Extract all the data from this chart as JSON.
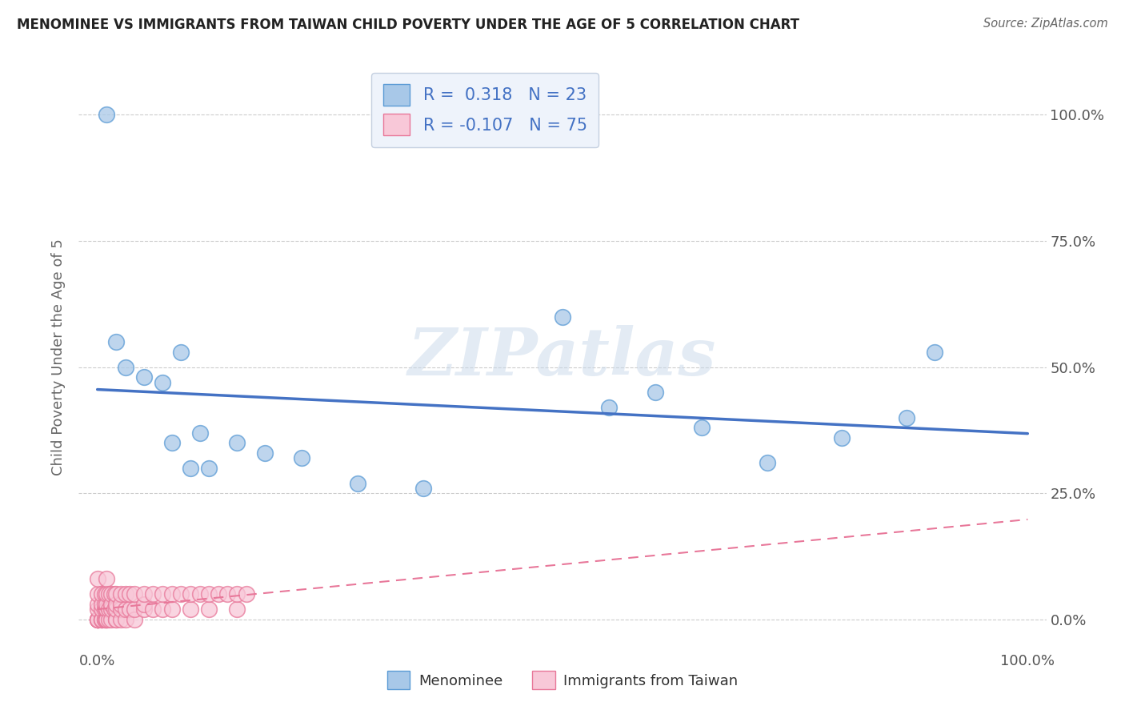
{
  "title": "MENOMINEE VS IMMIGRANTS FROM TAIWAN CHILD POVERTY UNDER THE AGE OF 5 CORRELATION CHART",
  "source": "Source: ZipAtlas.com",
  "ylabel": "Child Poverty Under the Age of 5",
  "watermark": "ZIPatlas",
  "menominee": {
    "color": "#a8c8e8",
    "edge_color": "#5b9bd5",
    "line_color": "#4472c4",
    "R": 0.318,
    "N": 23,
    "points_x": [
      0.01,
      0.02,
      0.03,
      0.05,
      0.07,
      0.08,
      0.09,
      0.1,
      0.11,
      0.12,
      0.15,
      0.18,
      0.22,
      0.28,
      0.35,
      0.5,
      0.55,
      0.6,
      0.65,
      0.72,
      0.8,
      0.87,
      0.9
    ],
    "points_y": [
      1.0,
      0.55,
      0.5,
      0.48,
      0.47,
      0.35,
      0.53,
      0.3,
      0.37,
      0.3,
      0.35,
      0.33,
      0.32,
      0.27,
      0.26,
      0.6,
      0.42,
      0.45,
      0.38,
      0.31,
      0.36,
      0.4,
      0.53
    ]
  },
  "taiwan": {
    "color": "#f8c8d8",
    "edge_color": "#e8789a",
    "line_color": "#e8789a",
    "R": -0.107,
    "N": 75,
    "points_x": [
      0.0,
      0.0,
      0.0,
      0.0,
      0.0,
      0.0,
      0.0,
      0.0,
      0.0,
      0.0,
      0.005,
      0.005,
      0.005,
      0.005,
      0.005,
      0.005,
      0.008,
      0.008,
      0.008,
      0.008,
      0.008,
      0.01,
      0.01,
      0.01,
      0.01,
      0.01,
      0.01,
      0.01,
      0.01,
      0.012,
      0.012,
      0.012,
      0.015,
      0.015,
      0.015,
      0.015,
      0.018,
      0.018,
      0.02,
      0.02,
      0.02,
      0.02,
      0.02,
      0.025,
      0.025,
      0.025,
      0.025,
      0.03,
      0.03,
      0.03,
      0.035,
      0.035,
      0.04,
      0.04,
      0.04,
      0.05,
      0.05,
      0.05,
      0.06,
      0.06,
      0.07,
      0.07,
      0.08,
      0.08,
      0.09,
      0.1,
      0.1,
      0.11,
      0.12,
      0.12,
      0.13,
      0.14,
      0.15,
      0.15,
      0.16
    ],
    "points_y": [
      0.0,
      0.0,
      0.0,
      0.0,
      0.0,
      0.0,
      0.02,
      0.03,
      0.05,
      0.08,
      0.0,
      0.0,
      0.0,
      0.02,
      0.03,
      0.05,
      0.0,
      0.0,
      0.02,
      0.03,
      0.05,
      0.0,
      0.0,
      0.0,
      0.02,
      0.02,
      0.03,
      0.05,
      0.08,
      0.0,
      0.02,
      0.05,
      0.0,
      0.02,
      0.03,
      0.05,
      0.02,
      0.05,
      0.0,
      0.0,
      0.02,
      0.03,
      0.05,
      0.0,
      0.02,
      0.03,
      0.05,
      0.0,
      0.02,
      0.05,
      0.02,
      0.05,
      0.0,
      0.02,
      0.05,
      0.02,
      0.03,
      0.05,
      0.02,
      0.05,
      0.02,
      0.05,
      0.02,
      0.05,
      0.05,
      0.02,
      0.05,
      0.05,
      0.02,
      0.05,
      0.05,
      0.05,
      0.02,
      0.05,
      0.05
    ]
  },
  "xlim": [
    -0.02,
    1.02
  ],
  "ylim": [
    -0.06,
    1.1
  ],
  "xticks": [
    0.0,
    1.0
  ],
  "xticklabels": [
    "0.0%",
    "100.0%"
  ],
  "yticks": [
    0.0,
    0.25,
    0.5,
    0.75,
    1.0
  ],
  "yticklabels_right": [
    "0.0%",
    "25.0%",
    "50.0%",
    "75.0%",
    "100.0%"
  ],
  "background_color": "#ffffff",
  "grid_color": "#cccccc",
  "legend_text_color": "#4472c4",
  "legend_facecolor": "#eef3fb",
  "legend_edgecolor": "#c5d0e0"
}
